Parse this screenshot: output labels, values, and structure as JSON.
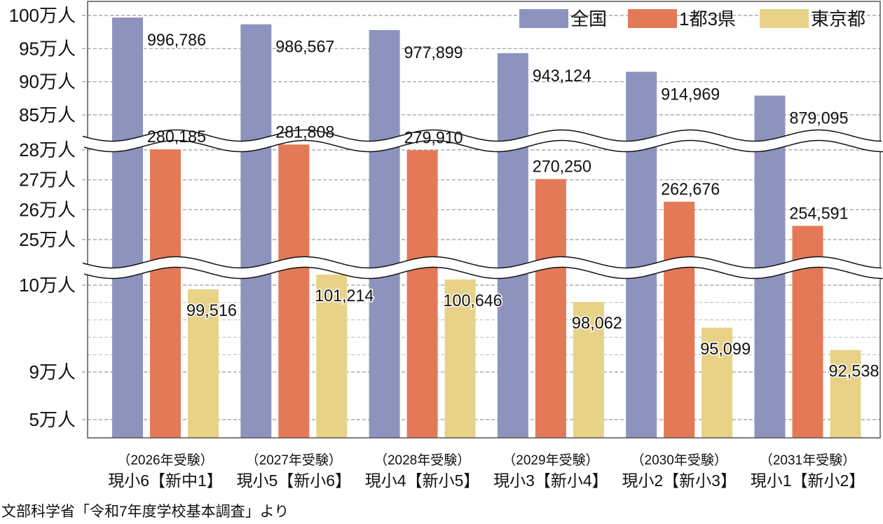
{
  "chart_data": {
    "type": "bar",
    "categories": [
      {
        "line1": "（2026年受験）",
        "line2": "現小6【新中1】"
      },
      {
        "line1": "（2027年受験）",
        "line2": "現小5【新小6】"
      },
      {
        "line1": "（2028年受験）",
        "line2": "現小4【新小5】"
      },
      {
        "line1": "（2029年受験）",
        "line2": "現小3【新小4】"
      },
      {
        "line1": "（2030年受験）",
        "line2": "現小2【新小3】"
      },
      {
        "line1": "（2031年受験）",
        "line2": "現小1【新小2】"
      }
    ],
    "series": [
      {
        "name": "全国",
        "color": "#8e93be",
        "values": [
          996786,
          986567,
          977899,
          943124,
          914969,
          879095
        ],
        "labels": [
          "996,786",
          "986,567",
          "977,899",
          "943,124",
          "914,969",
          "879,095"
        ]
      },
      {
        "name": "1都3県",
        "color": "#e47957",
        "values": [
          280185,
          281808,
          279910,
          270250,
          262676,
          254591
        ],
        "labels": [
          "280,185",
          "281,808",
          "279,910",
          "270,250",
          "262,676",
          "254,591"
        ]
      },
      {
        "name": "東京都",
        "color": "#e8d287",
        "values": [
          99516,
          101214,
          100646,
          98062,
          95099,
          92538
        ],
        "labels": [
          "99,516",
          "101,214",
          "100,646",
          "98,062",
          "95,099",
          "92,538"
        ]
      }
    ],
    "y_axis": {
      "broken": true,
      "ticks": [
        {
          "value": 1000000,
          "label": "100万人"
        },
        {
          "value": 950000,
          "label": "95万人"
        },
        {
          "value": 900000,
          "label": "90万人"
        },
        {
          "value": 850000,
          "label": "85万人"
        },
        {
          "value": 280000,
          "label": "28万人"
        },
        {
          "value": 270000,
          "label": "27万人"
        },
        {
          "value": 260000,
          "label": "26万人"
        },
        {
          "value": 250000,
          "label": "25万人"
        },
        {
          "value": 100000,
          "label": "10万人"
        },
        {
          "value": 90000,
          "label": "9万人"
        },
        {
          "value": 50000,
          "label": "5万人"
        }
      ],
      "minor_gridlines": [
        98000,
        96000,
        94000,
        92000
      ]
    },
    "grid": true,
    "legend_position": "top-right"
  },
  "source": "文部科学省「令和7年度学校基本調査」より"
}
